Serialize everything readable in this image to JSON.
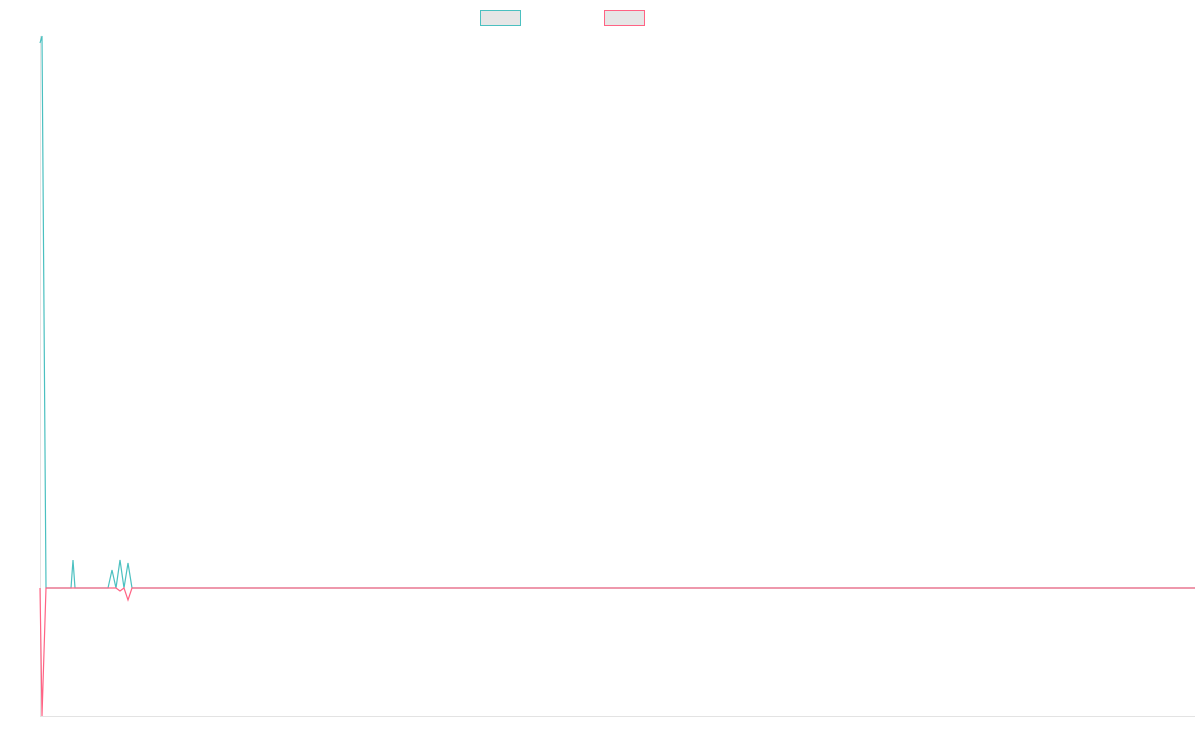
{
  "chart_data": {
    "type": "line",
    "x": [
      0,
      2,
      6,
      31,
      33,
      35,
      68,
      72,
      76,
      80,
      84,
      88,
      92,
      1155
    ],
    "xlim": [
      0,
      1155
    ],
    "ylim": [
      -128,
      552
    ],
    "series": [
      {
        "color": "#4bc0c0",
        "values": [
          545,
          552,
          0,
          0,
          28,
          0,
          0,
          18,
          0,
          28,
          0,
          25,
          0,
          0
        ]
      },
      {
        "color": "#ff6384",
        "values": [
          0,
          -128,
          0,
          0,
          0,
          0,
          0,
          0,
          0,
          -3,
          0,
          -12,
          0,
          0
        ]
      }
    ]
  }
}
